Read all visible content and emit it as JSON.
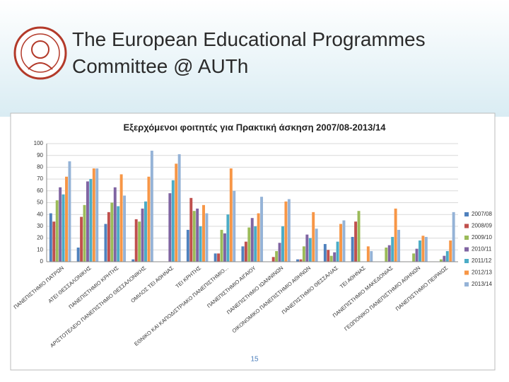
{
  "slide_title": "The European Educational Programmes Committee @ AUTh",
  "page_number": "15",
  "chart_data": {
    "type": "bar",
    "title": "Εξερχόμενοι φοιτητές για Πρακτική άσκηση 2007/08-2013/14",
    "categories": [
      "ΠΑΝΕΠΙΣΤΗΜΙΟ ΠΑΤΡΩΝ",
      "ΑΤΕΙ ΘΕΣΣΑΛΟΝΙΚΗΣ",
      "ΠΑΝΕΠΙΣΤΗΜΙΟ ΚΡΗΤΗΣ",
      "ΑΡΙΣΤΟΤΕΛΕΙΟ ΠΑΝΕΠΙΣΤΗΜΙΟ ΘΕΣΣΑΛΟΝΙΚΗΣ",
      "ΟΜΙΛΟΣ ΤΕΙ ΑΘΗΝΑΣ",
      "ΤΕΙ ΚΡΗΤΗΣ",
      "ΕΘΝΙΚΟ ΚΑΙ ΚΑΠΟΔΙΣΤΡΙΑΚΟ ΠΑΝΕΠΙΣΤΗΜΙΟ...",
      "ΠΑΝΕΠΙΣΤΗΜΙΟ ΑΙΓΑΙΟΥ",
      "ΠΑΝΕΠΙΣΤΗΜΙΟ ΙΩΑΝΝΙΝΩΝ",
      "ΟΙΚΟΝΟΜΙΚΟ ΠΑΝΕΠΙΣΤΗΜΙΟ ΑΘΗΝΩΝ",
      "ΠΑΝΕΠΙΣΤΗΜΙΟ ΘΕΣΣΑΛΙΑΣ",
      "ΤΕΙ ΑΘΗΝΑΣ",
      "ΠΑΝΕΠΙΣΤΗΜΙΟ ΜΑΚΕΔΟΝΙΑΣ",
      "ΓΕΩΠΟΝΙΚΟ ΠΑΝΕΠΙΣΤΗΜΙΟ ΑΘΗΝΩΝ",
      "ΠΑΝΕΠΙΣΤΗΜΙΟ ΠΕΙΡΑΙΩΣ"
    ],
    "series": [
      {
        "name": "2007/08",
        "color": "#4f81bd",
        "values": [
          41,
          12,
          32,
          2,
          0,
          27,
          7,
          13,
          0,
          2,
          15,
          21,
          0,
          0,
          0
        ]
      },
      {
        "name": "2008/09",
        "color": "#c0504d",
        "values": [
          34,
          38,
          42,
          36,
          0,
          54,
          7,
          17,
          4,
          2,
          10,
          34,
          0,
          0,
          0
        ]
      },
      {
        "name": "2009/10",
        "color": "#9bbb59",
        "values": [
          52,
          48,
          50,
          34,
          0,
          43,
          27,
          29,
          9,
          13,
          5,
          43,
          12,
          7,
          2
        ]
      },
      {
        "name": "2010/11",
        "color": "#8064a2",
        "values": [
          63,
          68,
          63,
          45,
          58,
          45,
          24,
          37,
          16,
          23,
          8,
          0,
          14,
          11,
          5
        ]
      },
      {
        "name": "2011/12",
        "color": "#4bacc6",
        "values": [
          57,
          70,
          47,
          51,
          69,
          30,
          40,
          30,
          30,
          20,
          17,
          0,
          21,
          18,
          9
        ]
      },
      {
        "name": "2012/13",
        "color": "#f79646",
        "values": [
          72,
          79,
          74,
          72,
          83,
          48,
          79,
          41,
          51,
          42,
          32,
          13,
          45,
          22,
          18
        ]
      },
      {
        "name": "2013/14",
        "color": "#95b3d7",
        "values": [
          85,
          79,
          56,
          94,
          91,
          41,
          60,
          55,
          53,
          28,
          35,
          9,
          27,
          21,
          42
        ]
      }
    ],
    "ylim": [
      0,
      100
    ],
    "yticks": [
      0,
      10,
      20,
      30,
      40,
      50,
      60,
      70,
      80,
      90,
      100
    ],
    "grid": true,
    "legend": "right"
  }
}
